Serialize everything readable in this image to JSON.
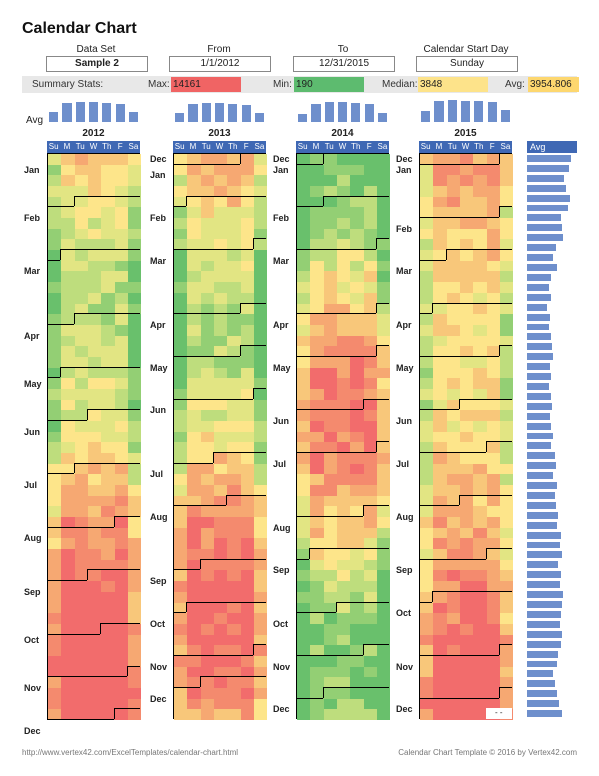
{
  "title": "Calendar Chart",
  "controls": {
    "data_set_label": "Data Set",
    "data_set_value": "Sample 2",
    "from_label": "From",
    "from_value": "1/1/2012",
    "to_label": "To",
    "to_value": "12/31/2015",
    "start_day_label": "Calendar Start Day",
    "start_day_value": "Sunday"
  },
  "stats": {
    "summary_label": "Summary Stats:",
    "max_label": "Max:",
    "max_value": "14161",
    "min_label": "Min:",
    "min_value": "190",
    "median_label": "Median:",
    "median_value": "3848",
    "avg_label": "Avg:",
    "avg_value": "3954.806"
  },
  "colors": {
    "max": "#f06464",
    "min": "#5dbb6f",
    "median": "#fde38a",
    "avg": "#fdd76f",
    "header_blue": "#3f68b4",
    "bar_blue": "#6e8fcc"
  },
  "weekday_labels": [
    "Su",
    "M",
    "Tu",
    "W",
    "Th",
    "F",
    "Sa"
  ],
  "weekday_avg_label": "Avg",
  "years": [
    {
      "year": "2012",
      "months": [
        "Jan",
        "Feb",
        "Mar",
        "Apr",
        "May",
        "Jun",
        "Jul",
        "Aug",
        "Sep",
        "Oct",
        "Nov",
        "Dec"
      ],
      "weekday_avg": [
        0.45,
        0.85,
        0.9,
        0.9,
        0.85,
        0.8,
        0.45
      ]
    },
    {
      "year": "2013",
      "months": [
        "Dec",
        "Jan",
        "Feb",
        "Mar",
        "Apr",
        "May",
        "Jun",
        "Jul",
        "Aug",
        "Sep",
        "Oct",
        "Nov",
        "Dec"
      ],
      "weekday_avg": [
        0.4,
        0.8,
        0.85,
        0.85,
        0.8,
        0.75,
        0.4
      ]
    },
    {
      "year": "2014",
      "months": [
        "Dec",
        "Jan",
        "Feb",
        "Mar",
        "Apr",
        "May",
        "Jun",
        "Jul",
        "Aug",
        "Sep",
        "Oct",
        "Nov",
        "Dec"
      ],
      "weekday_avg": [
        0.35,
        0.8,
        0.9,
        0.9,
        0.85,
        0.8,
        0.4
      ]
    },
    {
      "year": "2015",
      "months": [
        "Dec",
        "Jan",
        "Feb",
        "Mar",
        "Apr",
        "May",
        "Jun",
        "Jul",
        "Aug",
        "Sep",
        "Oct",
        "Nov",
        "Dec"
      ],
      "weekday_avg": [
        0.5,
        0.95,
        1.0,
        0.95,
        0.95,
        0.9,
        0.55
      ]
    }
  ],
  "avg_column_label": "Avg",
  "weekly_avg": [
    0.92,
    0.88,
    0.78,
    0.82,
    0.9,
    0.85,
    0.7,
    0.72,
    0.75,
    0.6,
    0.55,
    0.62,
    0.5,
    0.45,
    0.5,
    0.42,
    0.48,
    0.45,
    0.5,
    0.52,
    0.55,
    0.48,
    0.5,
    0.45,
    0.5,
    0.52,
    0.48,
    0.5,
    0.55,
    0.5,
    0.58,
    0.6,
    0.55,
    0.62,
    0.58,
    0.6,
    0.65,
    0.62,
    0.7,
    0.68,
    0.72,
    0.65,
    0.7,
    0.68,
    0.75,
    0.72,
    0.7,
    0.68,
    0.72,
    0.7,
    0.65,
    0.62,
    0.55,
    0.58,
    0.62,
    0.66,
    0.72
  ],
  "empty_marker": "-",
  "footer_left": "http://www.vertex42.com/ExcelTemplates/calendar-chart.html",
  "footer_right": "Calendar Chart Template © 2016 by Vertex42.com"
}
